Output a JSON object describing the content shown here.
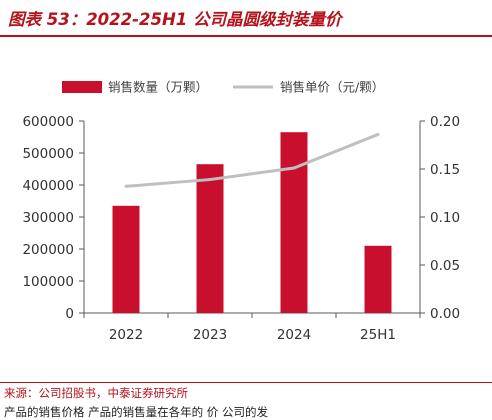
{
  "title": "图表 53：2022-25H1 公司晶圆级封装量价",
  "source": "来源：公司招股书，中泰证券研究所",
  "bottom_text": "产品的销售价格 产品的销售量在各年的 价 公司的发",
  "colors": {
    "bars": "#c8102e",
    "line": "#bfbfbf",
    "title": "#b5121b",
    "axis": "#595959"
  },
  "chart_data": {
    "type": "bar",
    "categories": [
      "2022",
      "2023",
      "2024",
      "25H1"
    ],
    "series": [
      {
        "name": "销售数量（万颗）",
        "type": "bar",
        "axis": "left",
        "values": [
          335000,
          465000,
          565000,
          210000
        ]
      },
      {
        "name": "销售单价（元/颗）",
        "type": "line",
        "axis": "right",
        "values": [
          0.132,
          0.139,
          0.151,
          0.186
        ]
      }
    ],
    "left_axis": {
      "ylim": [
        0,
        600000
      ],
      "ticks": [
        "0",
        "100000",
        "200000",
        "300000",
        "400000",
        "500000",
        "600000"
      ]
    },
    "right_axis": {
      "ylim": [
        0,
        0.2
      ],
      "ticks": [
        "0.00",
        "0.05",
        "0.10",
        "0.15",
        "0.20"
      ]
    },
    "legend_position": "top",
    "grid": false
  }
}
